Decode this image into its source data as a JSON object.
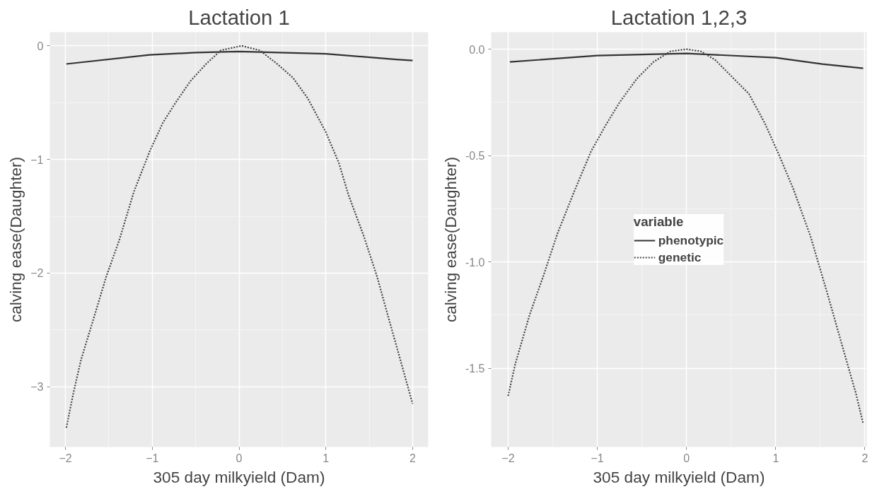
{
  "chart_data": [
    {
      "type": "line",
      "title": "Lactation 1",
      "xlabel": "305 day milkyield (Dam)",
      "ylabel": "calving ease(Daughter)",
      "xlim": [
        -2.18,
        2.18
      ],
      "ylim": [
        -3.53,
        0.12
      ],
      "xticks": [
        -2,
        -1,
        0,
        1,
        2
      ],
      "yticks": [
        -3,
        -2,
        -1,
        0
      ],
      "grid": true,
      "legend": false,
      "series": [
        {
          "color": "#333333",
          "line_style": "solid",
          "x": [
            -1.99,
            -1.03,
            -0.5,
            0,
            1.0,
            1.81,
            2.0
          ],
          "values": [
            -0.16,
            -0.08,
            -0.06,
            -0.05,
            -0.07,
            -0.12,
            -0.13
          ]
        },
        {
          "color": "#444444",
          "line_style": "dotted",
          "x": [
            -1.99,
            -1.91,
            -1.82,
            -1.66,
            -1.53,
            -1.38,
            -1.21,
            -1.03,
            -0.88,
            -0.74,
            -0.56,
            -0.38,
            -0.21,
            0.03,
            0.24,
            0.44,
            0.62,
            0.79,
            1.0,
            1.15,
            1.26,
            1.44,
            1.59,
            1.71,
            1.81,
            2.0
          ],
          "values": [
            -3.36,
            -3.06,
            -2.76,
            -2.36,
            -2.03,
            -1.71,
            -1.28,
            -0.93,
            -0.68,
            -0.51,
            -0.31,
            -0.16,
            -0.04,
            0.0,
            -0.04,
            -0.16,
            -0.28,
            -0.46,
            -0.76,
            -1.03,
            -1.31,
            -1.68,
            -2.03,
            -2.36,
            -2.63,
            -3.15
          ]
        }
      ]
    },
    {
      "type": "line",
      "title": "Lactation 1,2,3",
      "xlabel": "305 day milkyield (Dam)",
      "ylabel": "calving ease(Daughter)",
      "legend_title": "variable",
      "xlim": [
        -2.19,
        2.02
      ],
      "ylim": [
        -1.87,
        0.08
      ],
      "xticks": [
        -2,
        -1,
        0,
        1,
        2
      ],
      "yticks": [
        {
          "value": -1.5,
          "label": "-1.5"
        },
        {
          "value": -1.0,
          "label": "-1.0"
        },
        {
          "value": -0.5,
          "label": "-0.5"
        },
        {
          "value": 0,
          "label": "0.0"
        }
      ],
      "grid": true,
      "legend": "center",
      "series": [
        {
          "name": "phenotypic",
          "color": "#333333",
          "line_style": "solid",
          "x": [
            -1.98,
            -1.0,
            0,
            1.0,
            1.52,
            1.98
          ],
          "values": [
            -0.06,
            -0.03,
            -0.02,
            -0.04,
            -0.07,
            -0.09
          ]
        },
        {
          "name": "genetic",
          "color": "#444444",
          "line_style": "dotted",
          "x": [
            -2.0,
            -1.92,
            -1.76,
            -1.6,
            -1.45,
            -1.26,
            -1.07,
            -0.91,
            -0.75,
            -0.56,
            -0.37,
            -0.18,
            0.0,
            0.16,
            0.32,
            0.51,
            0.7,
            0.88,
            1.04,
            1.2,
            1.39,
            1.58,
            1.77,
            1.9,
            1.98
          ],
          "values": [
            -1.63,
            -1.48,
            -1.25,
            -1.06,
            -0.87,
            -0.67,
            -0.48,
            -0.36,
            -0.25,
            -0.14,
            -0.06,
            -0.01,
            0.0,
            -0.01,
            -0.05,
            -0.13,
            -0.21,
            -0.35,
            -0.5,
            -0.66,
            -0.88,
            -1.15,
            -1.43,
            -1.62,
            -1.76
          ]
        }
      ]
    }
  ]
}
